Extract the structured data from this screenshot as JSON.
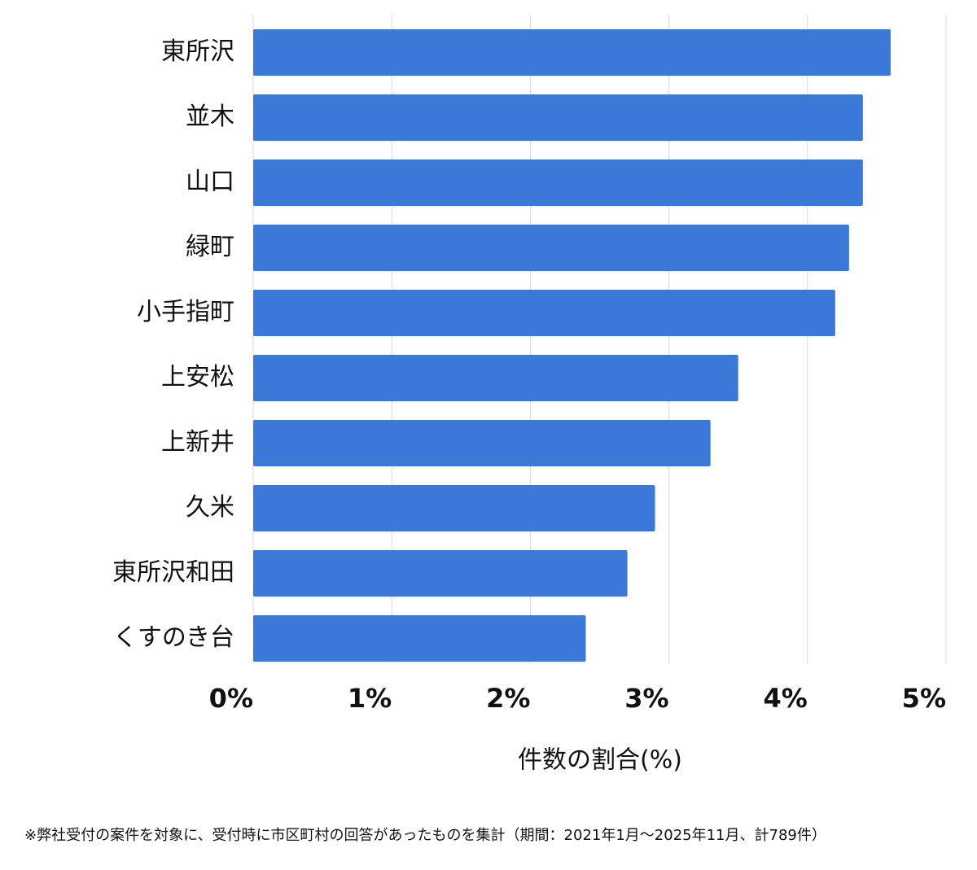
{
  "chart_data": {
    "type": "bar",
    "orientation": "horizontal",
    "categories": [
      "東所沢",
      "並木",
      "山口",
      "緑町",
      "小手指町",
      "上安松",
      "上新井",
      "久米",
      "東所沢和田",
      "くすのき台"
    ],
    "values": [
      4.6,
      4.4,
      4.4,
      4.3,
      4.2,
      3.5,
      3.3,
      2.9,
      2.7,
      2.4
    ],
    "color": "#3c78d8",
    "xlim": [
      0,
      5
    ],
    "xticks": [
      {
        "value": 0,
        "label": "0%"
      },
      {
        "value": 1,
        "label": "1%"
      },
      {
        "value": 2,
        "label": "2%"
      },
      {
        "value": 3,
        "label": "3%"
      },
      {
        "value": 4,
        "label": "4%"
      },
      {
        "value": 5,
        "label": "5%"
      }
    ],
    "x_label": "件数の割合(%)",
    "grid": true
  },
  "footnote": "※弊社受付の案件を対象に、受付時に市区町村の回答があったものを集計（期間：2021年1月〜2025年11月、計789件）"
}
